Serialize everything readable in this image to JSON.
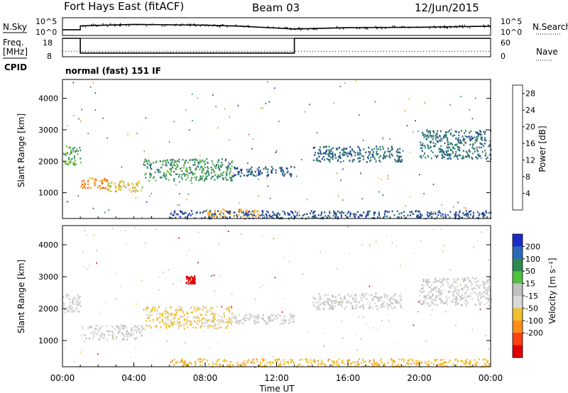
{
  "header": {
    "station": "Fort Hays East (fitACF)",
    "beam": "Beam 03",
    "date": "12/Jun/2015"
  },
  "top_panels": {
    "nsky_label": "N.Sky",
    "nsearch_label": "N.Search",
    "noise_tick_high": "10^5",
    "noise_tick_low": "10^0",
    "freq_label_line1": "Freq.",
    "freq_label_line2": "[MHz]",
    "freq_ticks": [
      "18",
      "8"
    ],
    "nave_label": "Nave",
    "nave_ticks": [
      "60",
      "0"
    ],
    "cpid_label": "CPID",
    "cpid_text": "normal (fast) 151 IF"
  },
  "colors": {
    "power_scale": [
      "#1616ff",
      "#1f3f9f",
      "#2f6d78",
      "#3b8f6a",
      "#6fbf3f",
      "#f0c030",
      "#ff8c1a",
      "#ff5010",
      "#e00000"
    ],
    "velocity_scale": [
      "#1c2cc8",
      "#2a68b8",
      "#2e8a50",
      "#50c040",
      "#c0c0c0",
      "#d8d8d8",
      "#f0c030",
      "#ff8c1a",
      "#ff4010",
      "#e00000"
    ]
  },
  "chart_data": [
    {
      "type": "line",
      "name": "noise",
      "series": [
        {
          "name": "N.Sky",
          "x_hours": [
            0,
            1,
            1,
            4,
            8,
            10,
            13,
            16,
            20,
            24
          ],
          "log10": [
            1.6,
            1.6,
            2.7,
            3.1,
            2.9,
            2.6,
            1.8,
            2.2,
            2.3,
            2.6
          ]
        },
        {
          "name": "N.Search",
          "x_hours": [
            0,
            1,
            1,
            4,
            8,
            10,
            13,
            16,
            20,
            24
          ],
          "log10": [
            1.7,
            1.7,
            2.8,
            3.2,
            3.0,
            2.7,
            1.9,
            2.3,
            2.4,
            2.7
          ]
        }
      ],
      "ylim": [
        0,
        5
      ]
    },
    {
      "type": "line",
      "name": "frequency_nave",
      "series": [
        {
          "name": "Freq",
          "x_hours": [
            0,
            1,
            1,
            13,
            13,
            24
          ],
          "values": [
            18,
            18,
            10,
            10,
            18,
            18
          ]
        },
        {
          "name": "Nave",
          "x_hours": [
            0,
            24
          ],
          "values": [
            18,
            18
          ]
        }
      ],
      "freq_ylim": [
        8,
        18
      ],
      "nave_ylim": [
        0,
        60
      ]
    },
    {
      "type": "heatmap",
      "name": "power",
      "xlabel": "",
      "ylabel": "Slant Range [km]",
      "xlim_hours": [
        0,
        24
      ],
      "ylim_km": [
        180,
        4600
      ],
      "y_ticks": [
        "1000",
        "2000",
        "3000",
        "4000"
      ],
      "colorbar_label": "Power [dB]",
      "colorbar_ticks": [
        "4",
        "8",
        "12",
        "16",
        "20",
        "24",
        "28"
      ],
      "colorbar_range": [
        0,
        30
      ],
      "features": [
        {
          "t": [
            0.0,
            1.0
          ],
          "r": [
            1900,
            2500
          ],
          "value": 14
        },
        {
          "t": [
            1.0,
            2.5
          ],
          "r": [
            1150,
            1500
          ],
          "value": 22
        },
        {
          "t": [
            2.5,
            4.5
          ],
          "r": [
            1050,
            1400
          ],
          "value": 18
        },
        {
          "t": [
            4.5,
            9.5
          ],
          "r": [
            1400,
            2100
          ],
          "value": 12
        },
        {
          "t": [
            9.5,
            13.0
          ],
          "r": [
            1550,
            1850
          ],
          "value": 7
        },
        {
          "t": [
            8.0,
            11.0
          ],
          "r": [
            250,
            500
          ],
          "value": 20
        },
        {
          "t": [
            6.0,
            24.0
          ],
          "r": [
            200,
            450
          ],
          "value": 6
        },
        {
          "t": [
            14.0,
            19.0
          ],
          "r": [
            2000,
            2500
          ],
          "value": 8
        },
        {
          "t": [
            20.0,
            24.0
          ],
          "r": [
            2100,
            3000
          ],
          "value": 9
        }
      ]
    },
    {
      "type": "heatmap",
      "name": "velocity",
      "xlabel": "Time UT",
      "ylabel": "Slant Range [km]",
      "xlim_hours": [
        0,
        24
      ],
      "ylim_km": [
        180,
        4600
      ],
      "x_ticks": [
        "00:00",
        "04:00",
        "08:00",
        "12:00",
        "16:00",
        "20:00",
        "00:00"
      ],
      "y_ticks": [
        "1000",
        "2000",
        "3000",
        "4000"
      ],
      "colorbar_label": "Velocity [m s⁻¹]",
      "colorbar_ticks": [
        "200",
        "100",
        "50",
        "15",
        "-15",
        "-50",
        "-100",
        "-200"
      ],
      "features": [
        {
          "t": [
            0.0,
            1.0
          ],
          "r": [
            1900,
            2500
          ],
          "value": 0
        },
        {
          "t": [
            1.0,
            4.5
          ],
          "r": [
            1050,
            1500
          ],
          "value": 0
        },
        {
          "t": [
            4.5,
            9.5
          ],
          "r": [
            1400,
            2100
          ],
          "value": -20
        },
        {
          "t": [
            9.5,
            13.0
          ],
          "r": [
            1550,
            1850
          ],
          "value": 0
        },
        {
          "t": [
            6.0,
            24.0
          ],
          "r": [
            200,
            450
          ],
          "value": -40
        },
        {
          "t": [
            14.0,
            19.0
          ],
          "r": [
            2000,
            2500
          ],
          "value": 0
        },
        {
          "t": [
            20.0,
            24.0
          ],
          "r": [
            2100,
            3000
          ],
          "value": 0
        },
        {
          "t": [
            6.9,
            7.4
          ],
          "r": [
            2800,
            3050
          ],
          "value": -250
        }
      ]
    }
  ]
}
